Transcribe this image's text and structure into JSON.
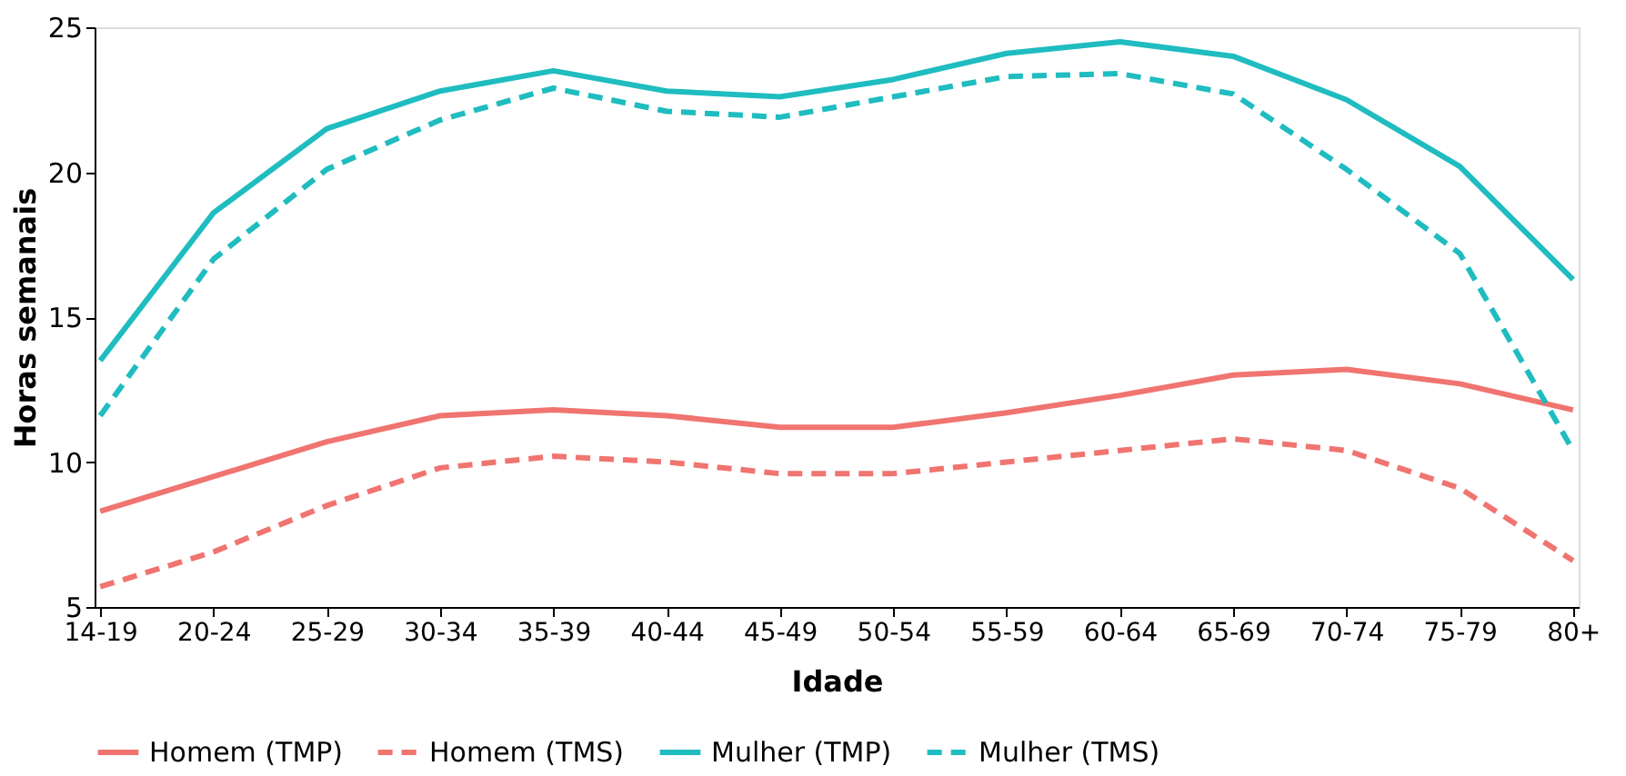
{
  "chart_data": {
    "type": "line",
    "xlabel": "Idade",
    "ylabel": "Horas semanais",
    "categories": [
      "14-19",
      "20-24",
      "25-29",
      "30-34",
      "35-39",
      "40-44",
      "45-49",
      "50-54",
      "55-59",
      "60-64",
      "65-69",
      "70-74",
      "75-79",
      "80+"
    ],
    "ylim": [
      5,
      25
    ],
    "yticks": [
      5,
      10,
      15,
      20,
      25
    ],
    "grid": false,
    "legend": "bottom",
    "marker": "none",
    "series": [
      {
        "name": "Homem (TMP)",
        "color": "#f07470",
        "line_style": "solid",
        "values": [
          8.3,
          9.5,
          10.7,
          11.6,
          11.8,
          11.6,
          11.2,
          11.2,
          11.7,
          12.3,
          13.0,
          13.2,
          12.7,
          11.8
        ]
      },
      {
        "name": "Homem (TMS)",
        "color": "#f07470",
        "line_style": "dashed",
        "values": [
          5.7,
          6.9,
          8.5,
          9.8,
          10.2,
          10.0,
          9.6,
          9.6,
          10.0,
          10.4,
          10.8,
          10.4,
          9.1,
          6.6
        ]
      },
      {
        "name": "Mulher (TMP)",
        "color": "#1fbcc0",
        "line_style": "solid",
        "values": [
          13.5,
          18.6,
          21.5,
          22.8,
          23.5,
          22.8,
          22.6,
          23.2,
          24.1,
          24.5,
          24.0,
          22.5,
          20.2,
          16.3
        ]
      },
      {
        "name": "Mulher (TMS)",
        "color": "#1fbcc0",
        "line_style": "dashed",
        "values": [
          11.6,
          17.0,
          20.1,
          21.8,
          22.9,
          22.1,
          21.9,
          22.6,
          23.3,
          23.4,
          22.7,
          20.1,
          17.2,
          10.4
        ]
      }
    ]
  }
}
